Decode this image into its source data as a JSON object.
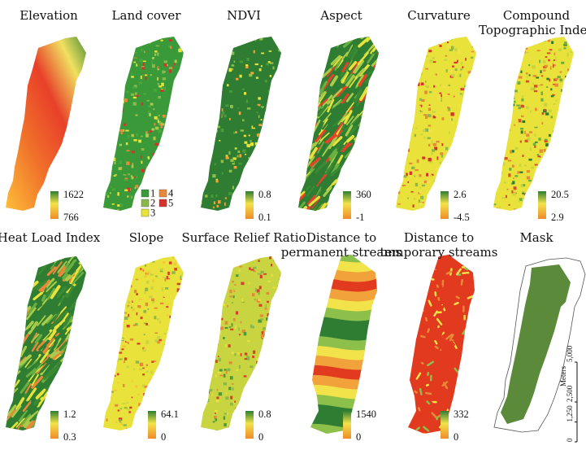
{
  "panels": [
    {
      "id": "elevation",
      "title": [
        "Elevation"
      ],
      "legend": {
        "type": "gradient",
        "max": "1622",
        "min": "766"
      },
      "style": "elevation"
    },
    {
      "id": "land-cover",
      "title": [
        "Land cover"
      ],
      "legend": {
        "type": "classes",
        "classes": [
          {
            "label": "1",
            "color": "#3a9a3a"
          },
          {
            "label": "2",
            "color": "#8ab84a"
          },
          {
            "label": "3",
            "color": "#e8e23a"
          },
          {
            "label": "4",
            "color": "#e8893a"
          },
          {
            "label": "5",
            "color": "#d8302a"
          }
        ]
      },
      "style": "landcover"
    },
    {
      "id": "ndvi",
      "title": [
        "NDVI"
      ],
      "legend": {
        "type": "gradient",
        "max": "0.8",
        "min": "0.1"
      },
      "style": "ndvi"
    },
    {
      "id": "aspect",
      "title": [
        "Aspect"
      ],
      "legend": {
        "type": "gradient",
        "max": "360",
        "min": "-1"
      },
      "style": "aspect"
    },
    {
      "id": "curvature",
      "title": [
        "Curvature"
      ],
      "legend": {
        "type": "gradient",
        "max": "2.6",
        "min": "-4.5"
      },
      "style": "curvature"
    },
    {
      "id": "cti",
      "title": [
        "Compound",
        "Topographic Index"
      ],
      "legend": {
        "type": "gradient",
        "max": "20.5",
        "min": "2.9"
      },
      "style": "cti"
    },
    {
      "id": "heat-load",
      "title": [
        "Heat Load Index"
      ],
      "legend": {
        "type": "gradient",
        "max": "1.2",
        "min": "0.3"
      },
      "style": "heat"
    },
    {
      "id": "slope",
      "title": [
        "Slope"
      ],
      "legend": {
        "type": "gradient",
        "max": "64.1",
        "min": "0"
      },
      "style": "slope"
    },
    {
      "id": "surface-relief",
      "title": [
        "Surface Relief Ratio"
      ],
      "legend": {
        "type": "gradient",
        "max": "0.8",
        "min": "0"
      },
      "style": "relief"
    },
    {
      "id": "dist-permanent",
      "title": [
        "Distance to",
        "permanent streams"
      ],
      "legend": {
        "type": "gradient",
        "max": "1540",
        "min": "0"
      },
      "style": "perm"
    },
    {
      "id": "dist-temporary",
      "title": [
        "Distance to",
        "temporary streams"
      ],
      "legend": {
        "type": "gradient",
        "max": "332",
        "min": "0"
      },
      "style": "temp"
    },
    {
      "id": "mask",
      "title": [
        "Mask"
      ],
      "legend": null,
      "style": "mask"
    }
  ],
  "scale_bar": {
    "unit": "Meters",
    "labels": [
      "0",
      "1,250",
      "2,500",
      "5,000"
    ]
  },
  "colors": {
    "green": "#2e7d32",
    "yellow": "#f2e34a",
    "orange": "#f08a2a",
    "red": "#e23a1e",
    "mask_fill": "#5a8a3a"
  }
}
